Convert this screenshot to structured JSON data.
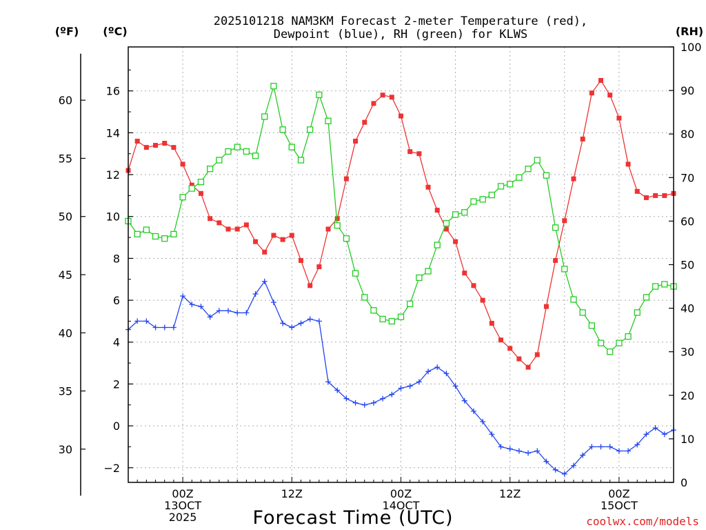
{
  "chart_data": {
    "type": "line",
    "title_line1": "2025101218 NAM3KM Forecast 2-meter Temperature (red),",
    "title_line2": "Dewpoint (blue), RH (green) for KLWS",
    "xlabel": "Forecast Time (UTC)",
    "watermark": "coolwx.com/models",
    "unit_f": "(ºF)",
    "unit_c": "(ºC)",
    "unit_rh": "(RH)",
    "x_range_hours": [
      0,
      60
    ],
    "ylim_c": [
      -2.7,
      18.1
    ],
    "ylim_rh": [
      0,
      100
    ],
    "ylim_f_ticks": [
      30,
      35,
      40,
      45,
      50,
      55,
      60
    ],
    "c_ticks": [
      -2,
      0,
      2,
      4,
      6,
      8,
      10,
      12,
      14,
      16
    ],
    "rh_ticks": [
      0,
      10,
      20,
      30,
      40,
      50,
      60,
      70,
      80,
      90,
      100
    ],
    "x_tick_labels": [
      {
        "hour": 6,
        "line1": "00Z",
        "line2": "13OCT",
        "line3": "2025"
      },
      {
        "hour": 18,
        "line1": "12Z",
        "line2": "",
        "line3": ""
      },
      {
        "hour": 30,
        "line1": "00Z",
        "line2": "14OCT",
        "line3": ""
      },
      {
        "hour": 42,
        "line1": "12Z",
        "line2": "",
        "line3": ""
      },
      {
        "hour": 54,
        "line1": "00Z",
        "line2": "15OCT",
        "line3": ""
      }
    ],
    "series": [
      {
        "name": "2-meter Temperature",
        "color": "#ee3333",
        "marker": "filled-square",
        "axis": "c",
        "values": [
          12.2,
          13.6,
          13.3,
          13.4,
          13.5,
          13.3,
          12.5,
          11.5,
          11.1,
          9.9,
          9.7,
          9.4,
          9.4,
          9.6,
          8.8,
          8.3,
          9.1,
          8.9,
          9.1,
          7.9,
          6.7,
          7.6,
          9.4,
          9.9,
          11.8,
          13.6,
          14.5,
          15.4,
          15.8,
          15.7,
          14.8,
          13.1,
          13.0,
          11.4,
          10.3,
          9.4,
          8.8,
          7.3,
          6.7,
          6.0,
          4.9,
          4.1,
          3.7,
          3.2,
          2.8,
          3.4,
          5.7,
          7.9,
          9.8,
          11.8,
          13.7,
          15.9,
          16.5,
          15.8,
          14.7,
          12.5,
          11.2,
          10.9,
          11.0,
          11.0,
          11.1
        ]
      },
      {
        "name": "Dewpoint",
        "color": "#2244ee",
        "marker": "plus",
        "axis": "c",
        "values": [
          4.6,
          5.0,
          5.0,
          4.7,
          4.7,
          4.7,
          6.2,
          5.8,
          5.7,
          5.2,
          5.5,
          5.5,
          5.4,
          5.4,
          6.3,
          6.9,
          5.9,
          4.9,
          4.7,
          4.9,
          5.1,
          5.0,
          2.1,
          1.7,
          1.3,
          1.1,
          1.0,
          1.1,
          1.3,
          1.5,
          1.8,
          1.9,
          2.1,
          2.6,
          2.8,
          2.5,
          1.9,
          1.2,
          0.7,
          0.2,
          -0.4,
          -1.0,
          -1.1,
          -1.2,
          -1.3,
          -1.2,
          -1.7,
          -2.1,
          -2.3,
          -1.9,
          -1.4,
          -1.0,
          -1.0,
          -1.0,
          -1.2,
          -1.2,
          -0.9,
          -0.4,
          -0.1,
          -0.4,
          -0.2
        ]
      },
      {
        "name": "RH",
        "color": "#22cc22",
        "marker": "open-square",
        "axis": "rh",
        "values": [
          60,
          57,
          58,
          56.5,
          56,
          57,
          65.5,
          67.5,
          69,
          72,
          74,
          76,
          77,
          76,
          75,
          84,
          91,
          81,
          77,
          74,
          81,
          89,
          83,
          59,
          56,
          48,
          42.5,
          39.5,
          37.5,
          37,
          38,
          41,
          47,
          48.5,
          54.5,
          59.5,
          61.5,
          62,
          64.5,
          65,
          66,
          68,
          68.5,
          70,
          72,
          74,
          70.5,
          58.5,
          49,
          42,
          39,
          36,
          32,
          30,
          32,
          33.5,
          39,
          42.5,
          45,
          45.5,
          45
        ]
      }
    ]
  }
}
